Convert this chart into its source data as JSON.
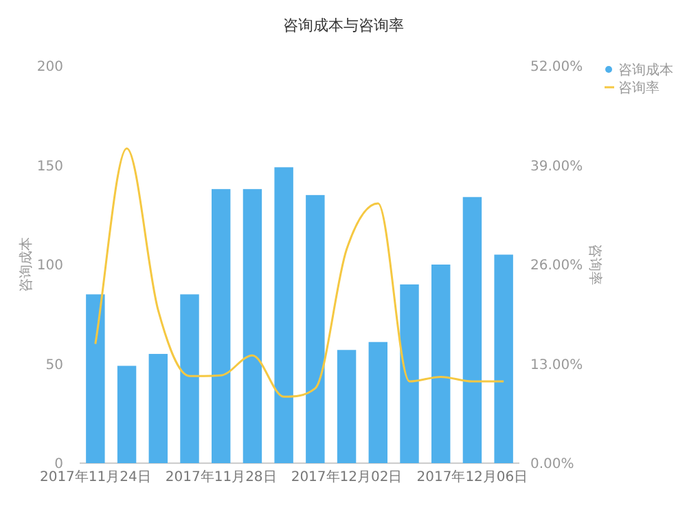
{
  "chart_data": {
    "type": "bar",
    "title": "咨询成本与咨询率",
    "ylabel": "咨询成本",
    "y2label": "咨询率",
    "categories": [
      "2017年11月24日",
      null,
      null,
      null,
      "2017年11月28日",
      null,
      null,
      null,
      "2017年12月02日",
      null,
      null,
      null,
      "2017年12月06日",
      null
    ],
    "series": [
      {
        "name": "咨询成本",
        "color": "#4fb0ec",
        "values": [
          85,
          49,
          55,
          85,
          138,
          138,
          149,
          135,
          57,
          61,
          90,
          100,
          134,
          105
        ]
      },
      {
        "name": "咨询率",
        "type": "line",
        "axis": "y2",
        "color": "#f5c842",
        "marker": "none",
        "values": [
          15.6,
          41.2,
          20,
          11.4,
          11.5,
          14.1,
          8.7,
          9.8,
          28,
          34,
          10.7,
          11.3,
          10.7,
          10.7
        ]
      }
    ],
    "ylim": [
      0,
      200
    ],
    "yticks": [
      0,
      50,
      100,
      150,
      200
    ],
    "y2lim": [
      0,
      52
    ],
    "y2ticks": [
      {
        "value": 0,
        "label": "0.00%"
      },
      {
        "value": 13,
        "label": "13.00%"
      },
      {
        "value": 26,
        "label": "26.00%"
      },
      {
        "value": 39,
        "label": "39.00%"
      },
      {
        "value": 52,
        "label": "52.00%"
      }
    ],
    "grid": false,
    "legend": "top right"
  }
}
